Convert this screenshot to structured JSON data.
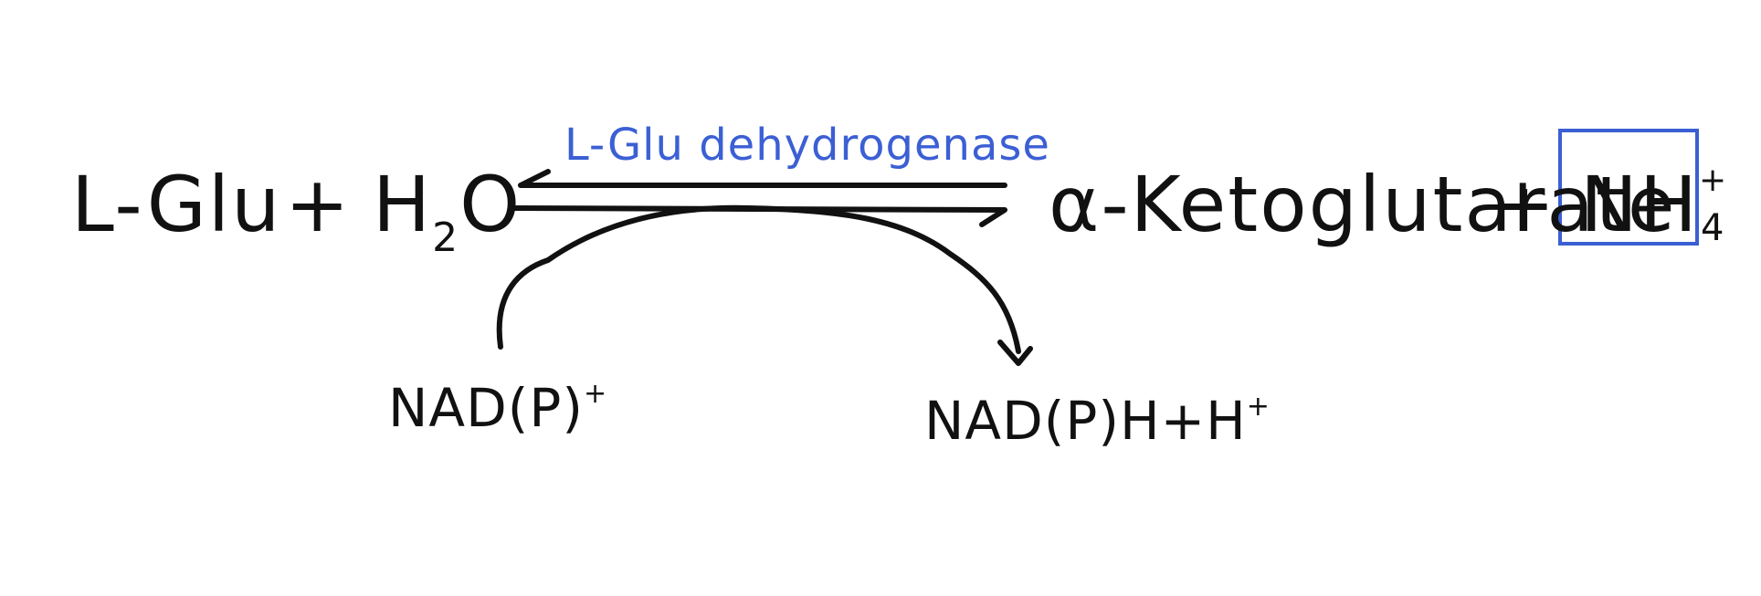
{
  "colors": {
    "ink": "#111111",
    "accent": "#3b5fd4"
  },
  "reaction": {
    "reactant_1": "L-Glu",
    "plus_1": "+",
    "reactant_2_base": "H",
    "reactant_2_sub": "2",
    "reactant_2_tail": "O",
    "enzyme": "L-Glu dehydrogenase",
    "product_1": "α-Ketoglutarate",
    "plus_2": "+",
    "product_2_base": "NH",
    "product_2_sup": "+",
    "product_2_sub": "4"
  },
  "cofactor": {
    "input_base": "NAD(P)",
    "input_sup": "+",
    "output_base": "NAD(P)H+H",
    "output_sup": "+"
  }
}
